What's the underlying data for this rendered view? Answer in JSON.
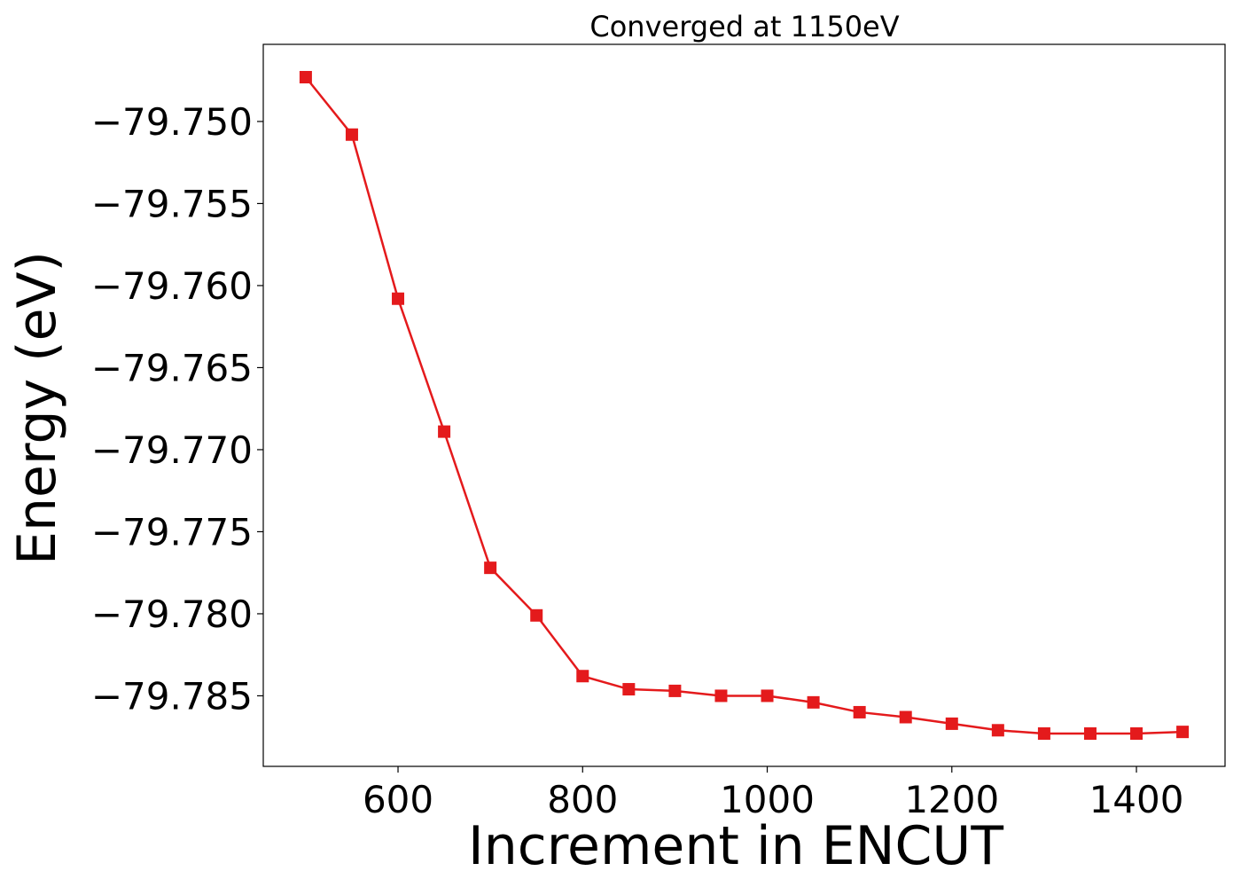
{
  "chart_data": {
    "type": "line",
    "title": "Converged at 1150eV",
    "xlabel": "Increment in ENCUT",
    "ylabel": "Energy (eV)",
    "x": [
      500,
      550,
      600,
      650,
      700,
      750,
      800,
      850,
      900,
      950,
      1000,
      1050,
      1100,
      1150,
      1200,
      1250,
      1300,
      1350,
      1400,
      1450
    ],
    "series": [
      {
        "values": [
          -79.7473,
          -79.7508,
          -79.7608,
          -79.7689,
          -79.7772,
          -79.7801,
          -79.7838,
          -79.7846,
          -79.7847,
          -79.785,
          -79.785,
          -79.7854,
          -79.786,
          -79.7863,
          -79.7867,
          -79.7871,
          -79.7873,
          -79.7873,
          -79.7873,
          -79.7872
        ],
        "color": "#e41a1c",
        "marker": "square"
      }
    ],
    "xlim": [
      454,
      1496
    ],
    "ylim": [
      -79.7893,
      -79.7453
    ],
    "xticks": [
      600,
      800,
      1000,
      1200,
      1400
    ],
    "xtick_labels": [
      "600",
      "800",
      "1000",
      "1200",
      "1400"
    ],
    "yticks": [
      -79.75,
      -79.755,
      -79.76,
      -79.765,
      -79.77,
      -79.775,
      -79.78,
      -79.785
    ],
    "ytick_labels": [
      "−79.750",
      "−79.755",
      "−79.760",
      "−79.765",
      "−79.770",
      "−79.775",
      "−79.780",
      "−79.785"
    ],
    "grid": false,
    "legend": "none"
  }
}
